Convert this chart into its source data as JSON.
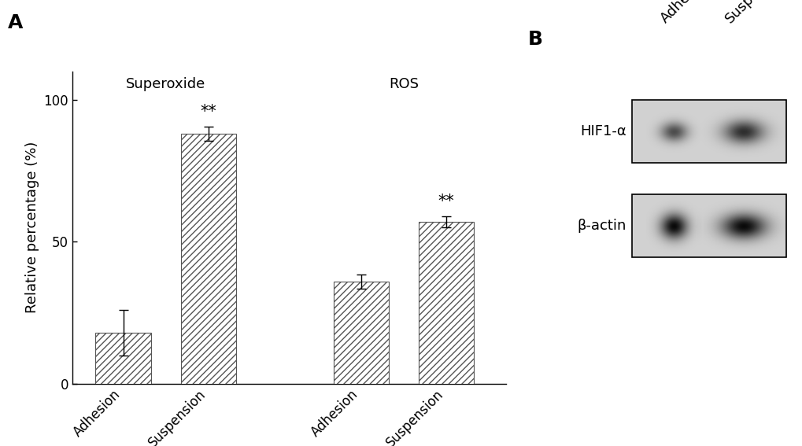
{
  "bar_values": [
    18,
    88,
    36,
    57
  ],
  "bar_errors": [
    8,
    2.5,
    2.5,
    2
  ],
  "bar_labels": [
    "Adhesion",
    "Suspension",
    "Adhesion",
    "Suspension"
  ],
  "group_labels": [
    "Superoxide",
    "ROS"
  ],
  "ylabel": "Relative percentage (%)",
  "ylim": [
    0,
    110
  ],
  "yticks": [
    0,
    50,
    100
  ],
  "significance": [
    false,
    true,
    false,
    true
  ],
  "sig_label": "**",
  "panel_a_label": "A",
  "panel_b_label": "B",
  "hatch_pattern": "////",
  "bar_color": "white",
  "bar_edge_color": "#555555",
  "bar_width": 0.65,
  "hif1a_label": "HIF1-α",
  "bactin_label": "β-actin",
  "column_labels": [
    "Adhesion",
    "Suspension"
  ],
  "background_color": "white",
  "font_size": 13,
  "tick_font_size": 12,
  "label_font_size": 13,
  "sig_font_size": 15,
  "panel_label_fontsize": 18
}
